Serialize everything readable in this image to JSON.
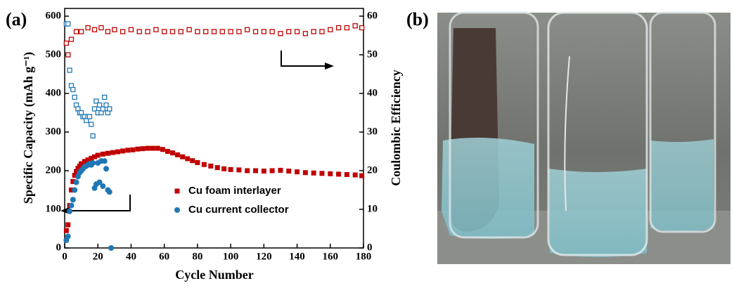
{
  "panel_labels": [
    "(a)",
    "(b)"
  ],
  "chart_data": {
    "type": "scatter",
    "xlabel": "Cycle Number",
    "ylabel": "Specific Capacity (mAh g⁻¹)",
    "y2label": "Coulombic Efficiency",
    "xlim": [
      0,
      180
    ],
    "xticks": [
      0,
      20,
      40,
      60,
      80,
      100,
      120,
      140,
      160,
      180
    ],
    "ylim": [
      0,
      620
    ],
    "yticks": [
      0,
      100,
      200,
      300,
      400,
      500,
      600
    ],
    "y2lim": [
      0,
      62
    ],
    "y2ticks": [
      0,
      10,
      20,
      30,
      40,
      50,
      60
    ],
    "series": [
      {
        "name": "Cu foam interlayer",
        "color": "#c00000",
        "marker": "square",
        "x": [
          1,
          2,
          3,
          4,
          5,
          6,
          7,
          8,
          9,
          10,
          12,
          14,
          16,
          18,
          20,
          23,
          26,
          29,
          32,
          35,
          38,
          41,
          44,
          47,
          50,
          53,
          56,
          59,
          62,
          65,
          68,
          71,
          74,
          77,
          80,
          84,
          88,
          92,
          96,
          100,
          105,
          110,
          115,
          120,
          125,
          130,
          135,
          140,
          145,
          150,
          155,
          160,
          165,
          170,
          175,
          179
        ],
        "values": [
          45,
          60,
          110,
          150,
          172,
          188,
          198,
          206,
          212,
          218,
          224,
          228,
          232,
          236,
          240,
          243,
          245,
          247,
          249,
          251,
          253,
          254,
          256,
          257,
          258,
          258,
          258,
          255,
          250,
          246,
          241,
          236,
          231,
          226,
          221,
          216,
          212,
          208,
          205,
          203,
          202,
          200,
          200,
          199,
          200,
          201,
          199,
          197,
          195,
          194,
          193,
          192,
          191,
          190,
          189,
          187
        ]
      },
      {
        "name": "Cu current collector",
        "color": "#1f77b4",
        "marker": "circle",
        "x": [
          1,
          2,
          3,
          4,
          5,
          6,
          7,
          8,
          9,
          10,
          11,
          12,
          13,
          14,
          15,
          16,
          17,
          18,
          19,
          20,
          21,
          22,
          23,
          24,
          25,
          26,
          27,
          28
        ],
        "values": [
          20,
          30,
          95,
          110,
          125,
          150,
          170,
          185,
          195,
          200,
          205,
          210,
          212,
          215,
          218,
          215,
          220,
          155,
          165,
          220,
          170,
          225,
          160,
          225,
          205,
          150,
          145,
          0
        ]
      },
      {
        "color": "#c00000",
        "marker": "open-square",
        "axis": "y2",
        "x": [
          1,
          2,
          4,
          7,
          10,
          14,
          18,
          22,
          26,
          30,
          35,
          40,
          45,
          50,
          55,
          60,
          65,
          70,
          75,
          80,
          85,
          90,
          95,
          100,
          105,
          110,
          115,
          120,
          125,
          130,
          135,
          140,
          145,
          150,
          155,
          160,
          165,
          170,
          175,
          179
        ],
        "values": [
          53,
          50,
          54,
          56,
          56,
          57,
          56.5,
          57,
          56,
          56.5,
          56,
          56.5,
          56,
          56,
          56.5,
          56,
          56,
          56,
          56.5,
          56,
          56,
          56,
          56,
          56,
          56,
          56.5,
          56,
          56,
          56,
          55.5,
          56,
          56,
          55.5,
          56,
          56,
          56.5,
          57,
          57,
          57.5,
          57
        ]
      },
      {
        "color": "#1f77b4",
        "marker": "open-square",
        "axis": "y2",
        "x": [
          1,
          2,
          3,
          4,
          5,
          6,
          7,
          8,
          9,
          10,
          11,
          12,
          13,
          14,
          15,
          16,
          17,
          18,
          19,
          20,
          21,
          22,
          23,
          24,
          25,
          26,
          27
        ],
        "values": [
          58,
          58,
          46,
          42,
          41,
          39,
          37,
          36,
          35,
          35,
          34,
          34,
          33,
          34,
          34,
          32,
          29,
          36,
          38,
          35,
          37,
          35,
          36,
          39,
          37,
          35,
          36
        ]
      }
    ]
  }
}
